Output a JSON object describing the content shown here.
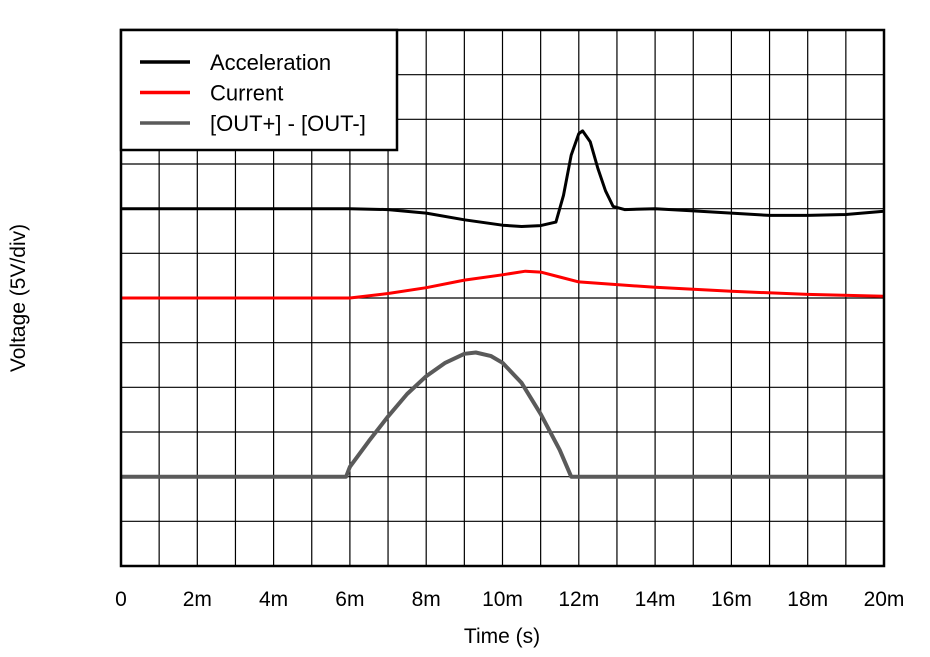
{
  "chart_data": {
    "type": "line",
    "title": "",
    "xlabel": "Time (s)",
    "ylabel": "Voltage (5V/div)",
    "xlim": [
      0,
      20
    ],
    "ylim": [
      0,
      12
    ],
    "x_unit_note": "m",
    "x_ticks": [
      "0",
      "2m",
      "4m",
      "6m",
      "8m",
      "10m",
      "12m",
      "14m",
      "16m",
      "18m",
      "20m"
    ],
    "x_tick_values": [
      0,
      2,
      4,
      6,
      8,
      10,
      12,
      14,
      16,
      18,
      20
    ],
    "grid": true,
    "grid_x_step": 1,
    "grid_y_step": 1,
    "legend_position": "top-left",
    "series": [
      {
        "name": "Acceleration",
        "color": "#000000",
        "x": [
          0,
          6,
          7,
          8,
          9,
          10,
          10.5,
          11,
          11.4,
          11.6,
          11.8,
          12.0,
          12.1,
          12.3,
          12.5,
          12.7,
          12.9,
          13.2,
          14,
          15,
          16,
          17,
          18,
          19,
          20
        ],
        "y": [
          8,
          8,
          7.98,
          7.9,
          7.75,
          7.63,
          7.6,
          7.62,
          7.7,
          8.3,
          9.2,
          9.68,
          9.74,
          9.5,
          8.9,
          8.4,
          8.05,
          7.98,
          8.0,
          7.95,
          7.9,
          7.85,
          7.85,
          7.87,
          7.94
        ]
      },
      {
        "name": "Current",
        "color": "#ff0000",
        "x": [
          0,
          6,
          7,
          8,
          9,
          10,
          10.6,
          11,
          11.5,
          12,
          13,
          14,
          16,
          18,
          20
        ],
        "y": [
          6,
          6,
          6.1,
          6.23,
          6.4,
          6.52,
          6.6,
          6.58,
          6.47,
          6.36,
          6.3,
          6.24,
          6.15,
          6.08,
          6.04
        ]
      },
      {
        "name": "[OUT+] - [OUT-]",
        "color": "#5a5a5a",
        "x": [
          0,
          5.9,
          6,
          6.5,
          7,
          7.5,
          8,
          8.5,
          9,
          9.3,
          9.7,
          10,
          10.5,
          11,
          11.5,
          11.8,
          20
        ],
        "y": [
          2,
          2,
          2.22,
          2.8,
          3.35,
          3.85,
          4.25,
          4.55,
          4.75,
          4.78,
          4.7,
          4.55,
          4.1,
          3.4,
          2.6,
          2.0,
          2
        ]
      }
    ]
  }
}
